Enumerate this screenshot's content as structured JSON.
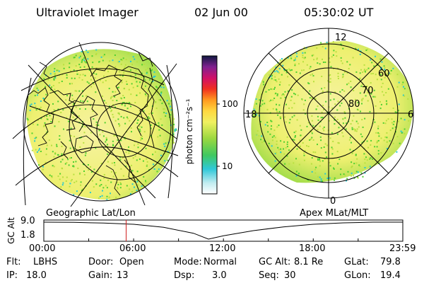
{
  "header": {
    "instrument": "Ultraviolet Imager",
    "date": "02 Jun 00",
    "time": "05:30:02 UT"
  },
  "colorbar": {
    "label": "photon cm⁻²s⁻¹",
    "ticks": [
      "100",
      "10"
    ]
  },
  "left_map": {
    "caption": "Geographic Lat/Lon"
  },
  "right_map": {
    "caption": "Apex MLat/MLT",
    "mlt_labels": [
      "12",
      "18",
      "6",
      "0"
    ],
    "mlat_labels": [
      "60",
      "70",
      "80"
    ]
  },
  "colors": {
    "noise_low": "#28c8d0",
    "green": "#50d030",
    "lime": "#b8e040",
    "yellow": "#f4f080",
    "bg": "#ffffff"
  },
  "chart_data": {
    "type": "line",
    "title": "GC Alt",
    "ylabel": "GC Alt",
    "y_ticks": [
      "9.0",
      "1.8"
    ],
    "ylim": [
      1.8,
      9.0
    ],
    "x_ticks": [
      "00:00",
      "06:00",
      "12:00",
      "18:00",
      "23:59"
    ],
    "x_hours": [
      0,
      2,
      4,
      6,
      8,
      10,
      11,
      12,
      14,
      16,
      18,
      20,
      22,
      23.98
    ],
    "gc_alt": [
      9.0,
      8.9,
      8.6,
      8.1,
      6.8,
      4.3,
      1.8,
      3.2,
      5.4,
      7.0,
      8.1,
      8.7,
      9.0,
      9.0
    ],
    "current_time_hours": 5.5,
    "colorbar_scale": {
      "min": 3,
      "max": 400,
      "ticks": [
        10,
        100
      ]
    }
  },
  "footer": {
    "rows": [
      [
        {
          "k": "Flt:",
          "v": "LBHS"
        },
        {
          "k": "Door:",
          "v": "Open"
        },
        {
          "k": "Mode:",
          "v": "Normal"
        },
        {
          "k": "GC Alt:",
          "v": "8.1 Re"
        },
        {
          "k": "GLat:",
          "v": "79.8"
        }
      ],
      [
        {
          "k": "IP:",
          "v": "18.0"
        },
        {
          "k": "Gain:",
          "v": "13"
        },
        {
          "k": "Dsp:",
          "v": "3.0"
        },
        {
          "k": "Seq:",
          "v": "30"
        },
        {
          "k": "GLon:",
          "v": "19.4"
        }
      ]
    ]
  }
}
